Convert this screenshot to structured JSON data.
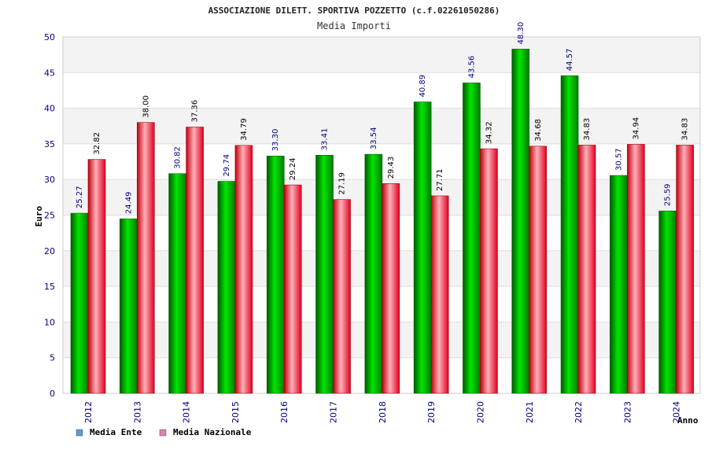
{
  "header": {
    "title": "ASSOCIAZIONE DILETT. SPORTIVA POZZETTO (c.f.02261050286)",
    "subtitle": "Media Importi"
  },
  "chart_data": {
    "type": "bar",
    "title": "ASSOCIAZIONE DILETT. SPORTIVA POZZETTO (c.f.02261050286)",
    "subtitle": "Media Importi",
    "xlabel": "Anno",
    "ylabel": "Euro",
    "ylim": [
      0,
      50
    ],
    "yticks": [
      0,
      5,
      10,
      15,
      20,
      25,
      30,
      35,
      40,
      45,
      50
    ],
    "grid": true,
    "legend_position": "bottom-left",
    "categories": [
      "2012",
      "2013",
      "2014",
      "2015",
      "2016",
      "2017",
      "2018",
      "2019",
      "2020",
      "2021",
      "2022",
      "2023",
      "2024"
    ],
    "series": [
      {
        "name": "Media Ente",
        "color": "#00b000",
        "legend_color": "#5b9bd5",
        "values": [
          25.27,
          24.49,
          30.82,
          29.74,
          33.3,
          33.41,
          33.54,
          40.89,
          43.56,
          48.3,
          44.57,
          30.57,
          25.59
        ],
        "labels": [
          "25.27",
          "24.49",
          "30.82",
          "29.74",
          "33.30",
          "33.41",
          "33.54",
          "40.89",
          "43.56",
          "48.30",
          "44.57",
          "30.57",
          "25.59"
        ]
      },
      {
        "name": "Media Nazionale",
        "color": "#e00020",
        "legend_color": "#e07fb0",
        "values": [
          32.82,
          38.0,
          37.36,
          34.79,
          29.24,
          27.19,
          29.43,
          27.71,
          34.32,
          34.68,
          34.83,
          34.94,
          34.83
        ],
        "labels": [
          "32.82",
          "38.00",
          "37.36",
          "34.79",
          "29.24",
          "27.19",
          "29.43",
          "27.71",
          "34.32",
          "34.68",
          "34.83",
          "34.94",
          "34.83"
        ]
      }
    ]
  }
}
